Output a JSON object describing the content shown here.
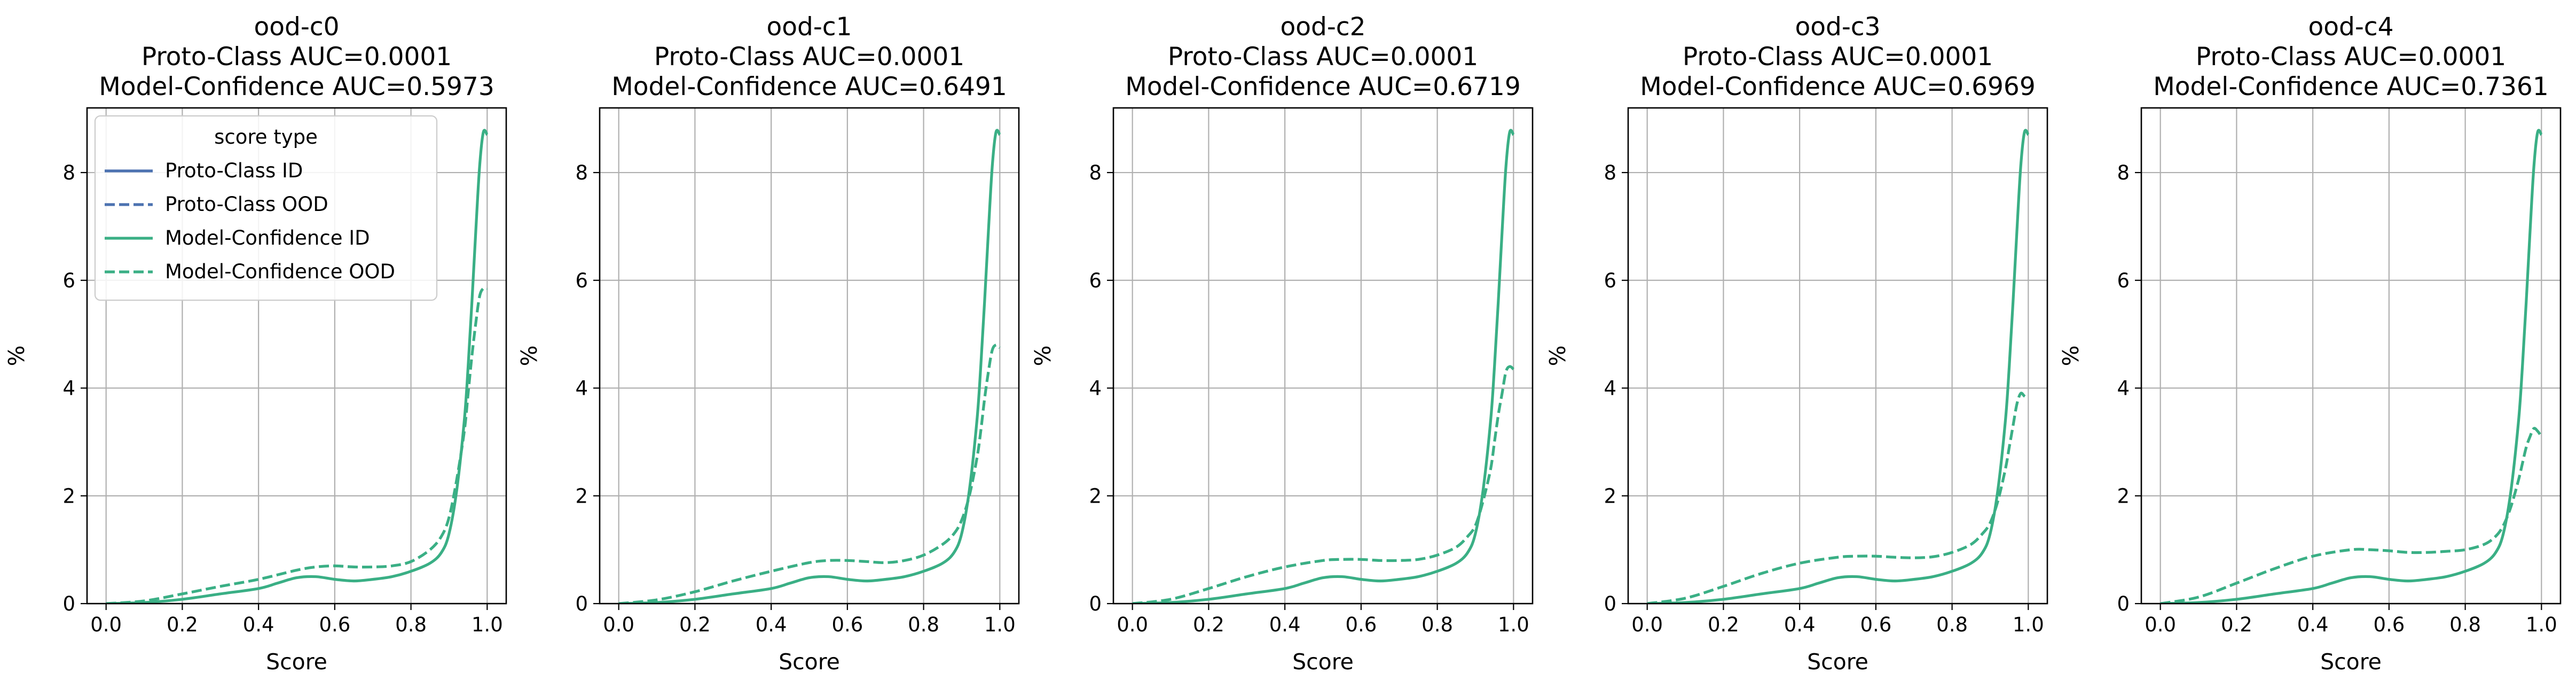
{
  "colors": {
    "proto_class": "#4c72b0",
    "model_confidence": "#3aaf85",
    "grid": "#b0b0b0",
    "axes": "#000000"
  },
  "chart_data": [
    {
      "type": "line",
      "title": [
        "ood-c0",
        "Proto-Class AUC=0.0001",
        "Model-Confidence AUC=0.5973"
      ],
      "xlabel": "Score",
      "ylabel": "%",
      "xlim": [
        -0.05,
        1.05
      ],
      "ylim": [
        0,
        9.2
      ],
      "xticks": [
        "0.0",
        "0.2",
        "0.4",
        "0.6",
        "0.8",
        "1.0"
      ],
      "yticks": [
        "0",
        "2",
        "4",
        "6",
        "8"
      ],
      "grid": true,
      "legend": {
        "title": "score type",
        "placement": "upper-left",
        "entries": [
          "Proto-Class ID",
          "Proto-Class OOD",
          "Model-Confidence ID",
          "Model-Confidence OOD"
        ]
      },
      "series": [
        {
          "name": "Model-Confidence ID",
          "style": "solid",
          "x": [
            0.0,
            0.1,
            0.2,
            0.3,
            0.4,
            0.45,
            0.5,
            0.55,
            0.6,
            0.65,
            0.7,
            0.75,
            0.8,
            0.85,
            0.88,
            0.9,
            0.92,
            0.94,
            0.95,
            0.96,
            0.97,
            0.98,
            0.99,
            1.0
          ],
          "y": [
            0.0,
            0.02,
            0.08,
            0.18,
            0.28,
            0.38,
            0.48,
            0.5,
            0.45,
            0.42,
            0.45,
            0.5,
            0.6,
            0.75,
            0.95,
            1.3,
            2.1,
            3.4,
            4.4,
            5.6,
            6.9,
            8.1,
            8.75,
            8.7
          ]
        },
        {
          "name": "Model-Confidence OOD",
          "style": "dashed",
          "x": [
            0.0,
            0.1,
            0.2,
            0.3,
            0.4,
            0.5,
            0.55,
            0.6,
            0.65,
            0.7,
            0.75,
            0.8,
            0.85,
            0.88,
            0.9,
            0.92,
            0.94,
            0.95,
            0.96,
            0.97,
            0.98,
            0.99,
            1.0
          ],
          "y": [
            0.0,
            0.05,
            0.18,
            0.32,
            0.45,
            0.62,
            0.68,
            0.7,
            0.68,
            0.68,
            0.7,
            0.78,
            1.0,
            1.25,
            1.6,
            2.3,
            3.2,
            3.9,
            4.6,
            5.2,
            5.7,
            5.85,
            5.85
          ]
        }
      ]
    },
    {
      "type": "line",
      "title": [
        "ood-c1",
        "Proto-Class AUC=0.0001",
        "Model-Confidence AUC=0.6491"
      ],
      "xlabel": "Score",
      "ylabel": "%",
      "xlim": [
        -0.05,
        1.05
      ],
      "ylim": [
        0,
        9.2
      ],
      "xticks": [
        "0.0",
        "0.2",
        "0.4",
        "0.6",
        "0.8",
        "1.0"
      ],
      "yticks": [
        "0",
        "2",
        "4",
        "6",
        "8"
      ],
      "grid": true,
      "series": [
        {
          "name": "Model-Confidence ID",
          "style": "solid",
          "x": [
            0.0,
            0.1,
            0.2,
            0.3,
            0.4,
            0.45,
            0.5,
            0.55,
            0.6,
            0.65,
            0.7,
            0.75,
            0.8,
            0.85,
            0.88,
            0.9,
            0.92,
            0.94,
            0.95,
            0.96,
            0.97,
            0.98,
            0.99,
            1.0
          ],
          "y": [
            0.0,
            0.02,
            0.08,
            0.18,
            0.28,
            0.38,
            0.48,
            0.5,
            0.45,
            0.42,
            0.45,
            0.5,
            0.6,
            0.75,
            0.95,
            1.3,
            2.1,
            3.4,
            4.4,
            5.6,
            6.9,
            8.1,
            8.75,
            8.7
          ]
        },
        {
          "name": "Model-Confidence OOD",
          "style": "dashed",
          "x": [
            0.0,
            0.1,
            0.2,
            0.3,
            0.4,
            0.5,
            0.55,
            0.6,
            0.65,
            0.7,
            0.75,
            0.8,
            0.85,
            0.88,
            0.9,
            0.92,
            0.94,
            0.95,
            0.96,
            0.97,
            0.98,
            0.99,
            1.0
          ],
          "y": [
            0.0,
            0.07,
            0.22,
            0.42,
            0.6,
            0.76,
            0.8,
            0.8,
            0.78,
            0.76,
            0.8,
            0.9,
            1.1,
            1.3,
            1.55,
            2.0,
            2.7,
            3.2,
            3.8,
            4.3,
            4.7,
            4.8,
            4.75
          ]
        }
      ]
    },
    {
      "type": "line",
      "title": [
        "ood-c2",
        "Proto-Class AUC=0.0001",
        "Model-Confidence AUC=0.6719"
      ],
      "xlabel": "Score",
      "ylabel": "%",
      "xlim": [
        -0.05,
        1.05
      ],
      "ylim": [
        0,
        9.2
      ],
      "xticks": [
        "0.0",
        "0.2",
        "0.4",
        "0.6",
        "0.8",
        "1.0"
      ],
      "yticks": [
        "0",
        "2",
        "4",
        "6",
        "8"
      ],
      "grid": true,
      "series": [
        {
          "name": "Model-Confidence ID",
          "style": "solid",
          "x": [
            0.0,
            0.1,
            0.2,
            0.3,
            0.4,
            0.45,
            0.5,
            0.55,
            0.6,
            0.65,
            0.7,
            0.75,
            0.8,
            0.85,
            0.88,
            0.9,
            0.92,
            0.94,
            0.95,
            0.96,
            0.97,
            0.98,
            0.99,
            1.0
          ],
          "y": [
            0.0,
            0.02,
            0.08,
            0.18,
            0.28,
            0.38,
            0.48,
            0.5,
            0.45,
            0.42,
            0.45,
            0.5,
            0.6,
            0.75,
            0.95,
            1.3,
            2.1,
            3.4,
            4.4,
            5.6,
            6.9,
            8.1,
            8.75,
            8.7
          ]
        },
        {
          "name": "Model-Confidence OOD",
          "style": "dashed",
          "x": [
            0.0,
            0.1,
            0.2,
            0.3,
            0.4,
            0.5,
            0.55,
            0.6,
            0.65,
            0.7,
            0.75,
            0.8,
            0.85,
            0.88,
            0.9,
            0.92,
            0.94,
            0.95,
            0.96,
            0.97,
            0.98,
            0.99,
            1.0
          ],
          "y": [
            0.0,
            0.08,
            0.28,
            0.5,
            0.68,
            0.8,
            0.82,
            0.82,
            0.8,
            0.8,
            0.82,
            0.9,
            1.05,
            1.25,
            1.45,
            1.9,
            2.5,
            3.0,
            3.5,
            3.9,
            4.3,
            4.4,
            4.35
          ]
        }
      ]
    },
    {
      "type": "line",
      "title": [
        "ood-c3",
        "Proto-Class AUC=0.0001",
        "Model-Confidence AUC=0.6969"
      ],
      "xlabel": "Score",
      "ylabel": "%",
      "xlim": [
        -0.05,
        1.05
      ],
      "ylim": [
        0,
        9.2
      ],
      "xticks": [
        "0.0",
        "0.2",
        "0.4",
        "0.6",
        "0.8",
        "1.0"
      ],
      "yticks": [
        "0",
        "2",
        "4",
        "6",
        "8"
      ],
      "grid": true,
      "series": [
        {
          "name": "Model-Confidence ID",
          "style": "solid",
          "x": [
            0.0,
            0.1,
            0.2,
            0.3,
            0.4,
            0.45,
            0.5,
            0.55,
            0.6,
            0.65,
            0.7,
            0.75,
            0.8,
            0.85,
            0.88,
            0.9,
            0.92,
            0.94,
            0.95,
            0.96,
            0.97,
            0.98,
            0.99,
            1.0
          ],
          "y": [
            0.0,
            0.02,
            0.08,
            0.18,
            0.28,
            0.38,
            0.48,
            0.5,
            0.45,
            0.42,
            0.45,
            0.5,
            0.6,
            0.75,
            0.95,
            1.3,
            2.1,
            3.4,
            4.4,
            5.6,
            6.9,
            8.1,
            8.75,
            8.7
          ]
        },
        {
          "name": "Model-Confidence OOD",
          "style": "dashed",
          "x": [
            0.0,
            0.1,
            0.2,
            0.3,
            0.4,
            0.5,
            0.55,
            0.6,
            0.65,
            0.7,
            0.75,
            0.8,
            0.85,
            0.88,
            0.9,
            0.92,
            0.94,
            0.95,
            0.96,
            0.97,
            0.98,
            0.99,
            1.0
          ],
          "y": [
            0.0,
            0.1,
            0.32,
            0.56,
            0.75,
            0.86,
            0.88,
            0.88,
            0.86,
            0.85,
            0.87,
            0.95,
            1.1,
            1.3,
            1.5,
            1.9,
            2.5,
            2.9,
            3.3,
            3.7,
            3.9,
            3.85,
            3.8
          ]
        }
      ]
    },
    {
      "type": "line",
      "title": [
        "ood-c4",
        "Proto-Class AUC=0.0001",
        "Model-Confidence AUC=0.7361"
      ],
      "xlabel": "Score",
      "ylabel": "%",
      "xlim": [
        -0.05,
        1.05
      ],
      "ylim": [
        0,
        9.2
      ],
      "xticks": [
        "0.0",
        "0.2",
        "0.4",
        "0.6",
        "0.8",
        "1.0"
      ],
      "yticks": [
        "0",
        "2",
        "4",
        "6",
        "8"
      ],
      "grid": true,
      "series": [
        {
          "name": "Model-Confidence ID",
          "style": "solid",
          "x": [
            0.0,
            0.1,
            0.2,
            0.3,
            0.4,
            0.45,
            0.5,
            0.55,
            0.6,
            0.65,
            0.7,
            0.75,
            0.8,
            0.85,
            0.88,
            0.9,
            0.92,
            0.94,
            0.95,
            0.96,
            0.97,
            0.98,
            0.99,
            1.0
          ],
          "y": [
            0.0,
            0.02,
            0.08,
            0.18,
            0.28,
            0.38,
            0.48,
            0.5,
            0.45,
            0.42,
            0.45,
            0.5,
            0.6,
            0.75,
            0.95,
            1.3,
            2.1,
            3.4,
            4.4,
            5.6,
            6.9,
            8.1,
            8.75,
            8.7
          ]
        },
        {
          "name": "Model-Confidence OOD",
          "style": "dashed",
          "x": [
            0.0,
            0.1,
            0.2,
            0.3,
            0.4,
            0.5,
            0.55,
            0.6,
            0.65,
            0.7,
            0.75,
            0.8,
            0.85,
            0.88,
            0.9,
            0.92,
            0.94,
            0.95,
            0.96,
            0.97,
            0.98,
            0.99,
            1.0
          ],
          "y": [
            0.0,
            0.12,
            0.38,
            0.65,
            0.88,
            1.0,
            1.0,
            0.98,
            0.95,
            0.95,
            0.97,
            1.0,
            1.1,
            1.25,
            1.45,
            1.8,
            2.3,
            2.6,
            2.9,
            3.1,
            3.25,
            3.2,
            3.1
          ]
        }
      ]
    }
  ]
}
